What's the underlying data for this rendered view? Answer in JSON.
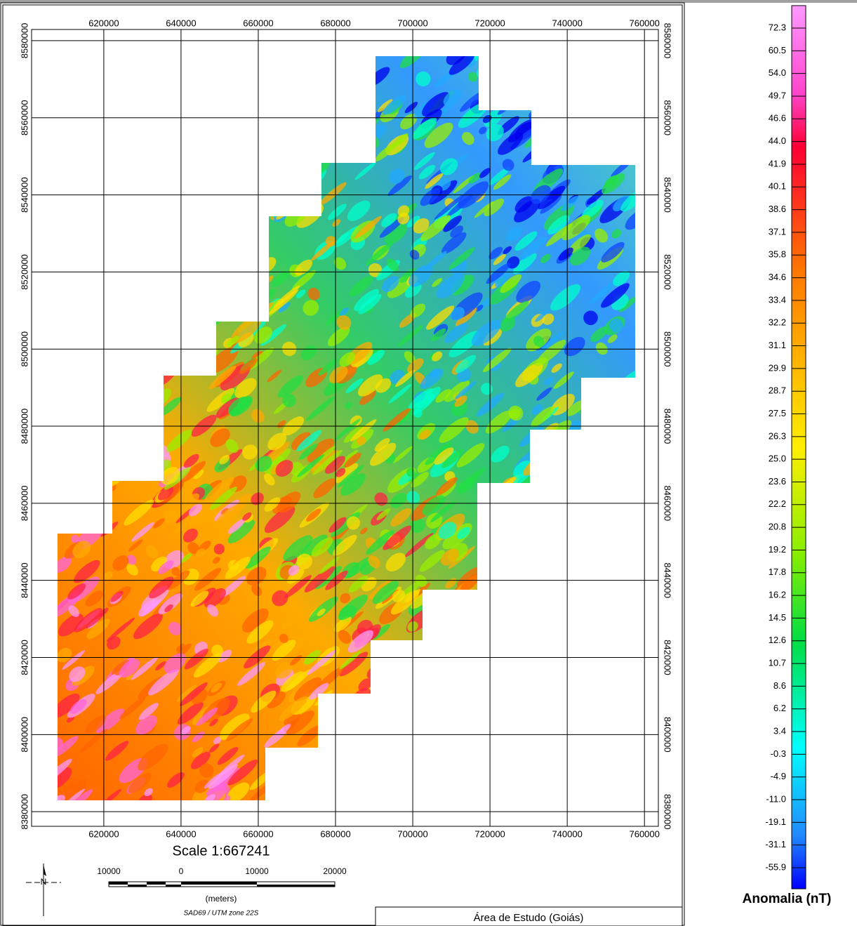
{
  "map": {
    "title": "Área de Estudo (Goiás)",
    "xlim": [
      601300,
      763600
    ],
    "ylim": [
      8376200,
      8582900
    ],
    "xticks": [
      620000,
      640000,
      660000,
      680000,
      700000,
      720000,
      740000,
      760000
    ],
    "yticks": [
      8580000,
      8560000,
      8540000,
      8520000,
      8500000,
      8480000,
      8460000,
      8440000,
      8420000,
      8400000,
      8380000
    ],
    "grid": true,
    "scale": "Scale 1:667241",
    "scale_bar": {
      "labels": [
        "10000",
        "0",
        "10000",
        "20000"
      ],
      "unit": "(meters)"
    },
    "projection": "SAD69 / UTM zone 22S",
    "north": "N"
  },
  "colorbar": {
    "title": "Anomalia (nT)",
    "labels": [
      "72.3",
      "60.5",
      "54.0",
      "49.7",
      "46.6",
      "44.0",
      "41.9",
      "40.1",
      "38.6",
      "37.1",
      "35.8",
      "34.6",
      "33.4",
      "32.2",
      "31.1",
      "29.9",
      "28.7",
      "27.5",
      "26.3",
      "25.0",
      "23.6",
      "22.2",
      "20.8",
      "19.2",
      "17.8",
      "16.2",
      "14.5",
      "12.6",
      "10.7",
      "8.6",
      "6.2",
      "3.4",
      "-0.3",
      "-4.9",
      "-11.0",
      "-19.1",
      "-31.1",
      "-55.9"
    ]
  }
}
